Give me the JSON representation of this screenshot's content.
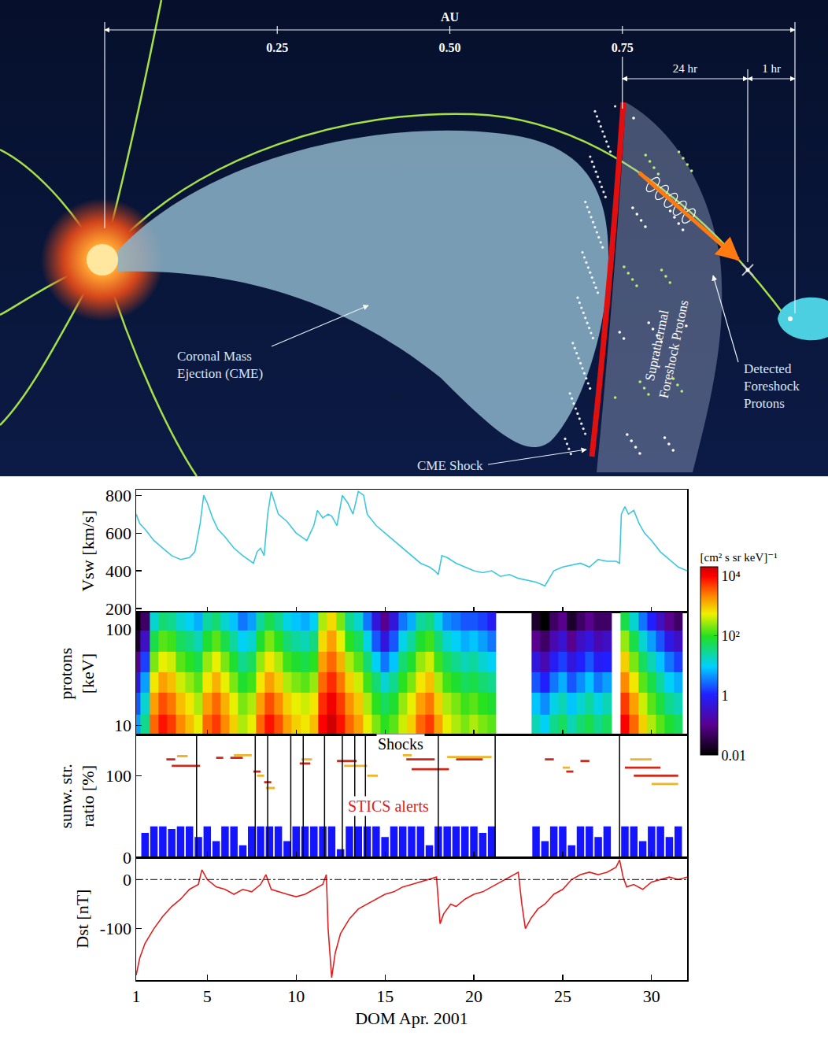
{
  "diagram": {
    "scale": {
      "label": "AU",
      "ticks": [
        {
          "value": 0.25,
          "label": "0.25"
        },
        {
          "value": 0.5,
          "label": "0.50"
        },
        {
          "value": 0.75,
          "label": "0.75"
        }
      ]
    },
    "intervals": [
      "24 hr",
      "1 hr"
    ],
    "labels": {
      "cme": "Coronal Mass\nEjection (CME)",
      "shock": "CME Shock",
      "foreshock": "Suprathermal\nForeshock Protons",
      "detected": "Detected\nForeshock\nProtons"
    }
  },
  "chart_data": [
    {
      "type": "line",
      "ylabel": "Vsw [km/s]",
      "color": "#3cc8dc",
      "x": [
        1.0,
        1.2,
        1.5,
        2,
        2.5,
        3,
        3.5,
        4,
        4.3,
        4.6,
        4.8,
        5.0,
        5.3,
        5.6,
        6,
        6.5,
        7,
        7.3,
        7.6,
        7.8,
        8.0,
        8.2,
        8.4,
        8.6,
        8.8,
        9,
        9.5,
        10,
        10.3,
        10.6,
        10.8,
        11,
        11.2,
        11.5,
        11.8,
        12,
        12.3,
        12.6,
        12.9,
        13.2,
        13.5,
        13.8,
        14,
        14.5,
        15,
        15.5,
        16,
        16.5,
        17,
        17.5,
        17.8,
        18,
        18.2,
        18.5,
        19,
        19.5,
        20,
        20.5,
        21,
        21.5,
        22,
        22.5,
        23,
        23.5,
        24,
        24.5,
        25,
        25.5,
        26,
        26.5,
        27,
        27.5,
        28,
        28.2,
        28.3,
        28.5,
        28.7,
        29,
        29.3,
        29.6,
        30,
        30.5,
        31,
        31.5,
        32
      ],
      "values": [
        700,
        650,
        620,
        560,
        520,
        480,
        460,
        470,
        500,
        650,
        800,
        760,
        680,
        620,
        580,
        520,
        480,
        460,
        440,
        500,
        520,
        480,
        700,
        820,
        760,
        700,
        660,
        600,
        580,
        560,
        600,
        640,
        720,
        680,
        700,
        690,
        640,
        800,
        760,
        700,
        820,
        800,
        700,
        640,
        600,
        560,
        520,
        480,
        440,
        420,
        400,
        380,
        480,
        470,
        440,
        420,
        400,
        390,
        400,
        370,
        380,
        360,
        350,
        340,
        320,
        400,
        420,
        430,
        440,
        420,
        460,
        450,
        450,
        440,
        700,
        740,
        700,
        720,
        650,
        600,
        560,
        500,
        460,
        420,
        400
      ],
      "xlim": [
        1,
        32
      ],
      "xticks": [
        1,
        5,
        10,
        15,
        20,
        25,
        30
      ],
      "ylim": [
        180,
        830
      ],
      "yticks": [
        200,
        400,
        600,
        800
      ],
      "tick_labels": "y"
    },
    {
      "type": "heatmap",
      "ylabel": "protons\n[keV]",
      "log": "y",
      "x": [
        1.0,
        1.5,
        2.0,
        2.5,
        3.0,
        3.5,
        4.0,
        4.5,
        5.0,
        5.5,
        6.0,
        6.5,
        7.0,
        7.5,
        8.0,
        8.5,
        9.0,
        9.5,
        10.0,
        10.5,
        11.0,
        11.5,
        12.0,
        12.5,
        13.0,
        13.5,
        14.0,
        14.5,
        15.0,
        15.5,
        16.0,
        16.5,
        17.0,
        17.5,
        18.0,
        18.5,
        19.0,
        19.5,
        20.0,
        20.5,
        21.0,
        21.5,
        22.0,
        22.5,
        23.0,
        23.5,
        24.0,
        24.5,
        25.0,
        25.5,
        26.0,
        26.5,
        27.0,
        27.5,
        28.0,
        28.5,
        29.0,
        29.5,
        30.0,
        30.5,
        31.0,
        31.5
      ],
      "y": [
        10,
        17,
        28,
        45,
        75,
        125
      ],
      "z": [
        [
          5,
          30,
          3000,
          8000,
          5000,
          2000,
          1000,
          500,
          3000,
          5000,
          2000,
          800,
          300,
          500,
          3000,
          8000,
          4000,
          1500,
          800,
          600,
          1000,
          10000,
          20000,
          8000,
          3000,
          1500,
          500,
          200,
          100,
          150,
          400,
          800,
          3000,
          5000,
          1500,
          500,
          300,
          200,
          300,
          200,
          150,
          null,
          null,
          null,
          null,
          20,
          10,
          30,
          50,
          20,
          40,
          60,
          30,
          50,
          null,
          10000,
          3000,
          800,
          300,
          150,
          80,
          50
        ],
        [
          2,
          15,
          1500,
          4000,
          2500,
          1000,
          600,
          300,
          1500,
          3000,
          1200,
          500,
          200,
          300,
          1500,
          4000,
          2000,
          800,
          500,
          400,
          600,
          6000,
          12000,
          5000,
          1800,
          900,
          300,
          100,
          50,
          80,
          250,
          500,
          1500,
          2500,
          800,
          300,
          200,
          120,
          150,
          100,
          80,
          null,
          null,
          null,
          null,
          8,
          4,
          12,
          20,
          8,
          15,
          25,
          12,
          20,
          null,
          5000,
          1500,
          400,
          150,
          70,
          30,
          20
        ],
        [
          0.5,
          5,
          600,
          1500,
          1000,
          400,
          250,
          150,
          600,
          1200,
          500,
          200,
          80,
          120,
          600,
          1500,
          800,
          300,
          200,
          150,
          250,
          3000,
          6000,
          2500,
          800,
          400,
          120,
          40,
          15,
          30,
          100,
          200,
          600,
          1000,
          300,
          120,
          80,
          50,
          60,
          40,
          30,
          null,
          null,
          null,
          null,
          2,
          1,
          3,
          6,
          2,
          4,
          8,
          3,
          5,
          null,
          2000,
          600,
          150,
          60,
          25,
          10,
          6
        ],
        [
          0.1,
          1.5,
          200,
          500,
          400,
          150,
          100,
          60,
          250,
          500,
          200,
          80,
          30,
          50,
          250,
          600,
          300,
          120,
          80,
          60,
          100,
          1500,
          3000,
          1200,
          300,
          150,
          40,
          10,
          3,
          8,
          40,
          80,
          250,
          400,
          120,
          50,
          30,
          20,
          25,
          15,
          10,
          null,
          null,
          null,
          null,
          0.5,
          0.2,
          0.8,
          1.5,
          0.5,
          1,
          2,
          0.8,
          1,
          null,
          800,
          200,
          50,
          20,
          8,
          3,
          1.5
        ],
        [
          0.02,
          0.3,
          60,
          150,
          120,
          50,
          35,
          20,
          80,
          150,
          60,
          25,
          10,
          15,
          80,
          200,
          100,
          40,
          25,
          20,
          35,
          700,
          1500,
          500,
          100,
          50,
          12,
          2,
          0.5,
          2,
          12,
          25,
          80,
          120,
          40,
          15,
          10,
          6,
          8,
          5,
          3,
          null,
          null,
          null,
          null,
          0.1,
          0.05,
          0.2,
          0.4,
          0.1,
          0.3,
          0.5,
          0.2,
          0.3,
          null,
          250,
          60,
          15,
          5,
          2,
          0.6,
          0.3
        ],
        [
          0.01,
          0.05,
          15,
          40,
          30,
          15,
          10,
          6,
          25,
          40,
          15,
          8,
          3,
          5,
          25,
          60,
          30,
          12,
          8,
          6,
          10,
          300,
          700,
          200,
          30,
          15,
          3,
          0.5,
          0.1,
          0.5,
          3,
          6,
          25,
          35,
          12,
          4,
          3,
          2,
          2,
          1.5,
          0.8,
          null,
          null,
          null,
          null,
          0.02,
          0.01,
          0.05,
          0.1,
          0.02,
          0.05,
          0.1,
          0.05,
          0.05,
          null,
          60,
          15,
          3,
          1,
          0.3,
          0.1,
          0.05
        ]
      ],
      "colorbar": {
        "title": "[cm² s sr keV]⁻¹",
        "range": [
          0.01,
          20000
        ],
        "ticks": [
          {
            "value": 10000,
            "label": "10⁴"
          },
          {
            "value": 100,
            "label": "10²"
          },
          1,
          0.01
        ]
      },
      "xlim": [
        1,
        32
      ],
      "xticks": [
        1,
        5,
        10,
        15,
        20,
        25,
        30
      ],
      "ylim": [
        8,
        150
      ],
      "yticks": [
        10,
        100
      ],
      "tick_labels": "y"
    },
    {
      "type": "bar",
      "ylabel": "sunw. str.\nratio [%]",
      "series": [
        {
          "type": "bar",
          "color": "#1414ff",
          "x": [
            1.0,
            1.5,
            2.0,
            2.5,
            3.0,
            3.5,
            4.0,
            4.5,
            5.0,
            5.5,
            6.0,
            6.5,
            7.0,
            7.5,
            8.0,
            8.5,
            9.0,
            9.5,
            10.0,
            10.5,
            11.0,
            11.5,
            12.0,
            12.5,
            13.0,
            13.5,
            14.0,
            14.5,
            15.0,
            15.5,
            16.0,
            16.5,
            17.0,
            17.5,
            18.0,
            18.5,
            19.0,
            19.5,
            20.0,
            20.5,
            21.0,
            21.5,
            22.0,
            22.5,
            23.0,
            23.5,
            24.0,
            24.5,
            25.0,
            25.5,
            26.0,
            26.5,
            27.0,
            27.5,
            28.0,
            28.5,
            29.0,
            29.5,
            30.0,
            30.5,
            31.0,
            31.5
          ],
          "values": [
            null,
            30,
            38,
            38,
            35,
            38,
            38,
            25,
            38,
            20,
            38,
            38,
            15,
            38,
            38,
            38,
            38,
            20,
            38,
            38,
            38,
            38,
            38,
            10,
            38,
            38,
            38,
            38,
            25,
            38,
            38,
            38,
            38,
            15,
            38,
            38,
            38,
            38,
            38,
            30,
            38,
            null,
            null,
            null,
            null,
            38,
            20,
            38,
            38,
            15,
            38,
            38,
            25,
            38,
            null,
            38,
            38,
            20,
            38,
            38,
            25,
            38
          ]
        },
        {
          "type": "line",
          "color": "#d02818",
          "x": [
            2.7,
            3.2,
            null,
            3.0,
            4.6,
            null,
            5.5,
            5.9,
            null,
            6.3,
            7.0,
            null,
            7.6,
            8.0,
            null,
            8.2,
            8.6,
            null,
            10.2,
            10.8,
            null,
            12.3,
            13.4,
            null,
            16.2,
            17.8,
            null,
            16.5,
            18.6,
            null,
            19.0,
            20.5,
            null,
            24.0,
            24.5,
            null,
            25.2,
            25.6,
            null,
            26.0,
            26.5,
            null,
            28.5,
            30.5,
            null,
            29.0,
            31.5
          ],
          "values": [
            120,
            120,
            null,
            112,
            112,
            null,
            122,
            122,
            null,
            122,
            122,
            null,
            105,
            105,
            null,
            92,
            92,
            null,
            115,
            115,
            null,
            118,
            118,
            null,
            120,
            120,
            null,
            108,
            108,
            null,
            120,
            120,
            null,
            120,
            120,
            null,
            105,
            105,
            null,
            118,
            118,
            null,
            110,
            110,
            null,
            100,
            100
          ]
        },
        {
          "type": "line",
          "color": "#f0b428",
          "x": [
            3.3,
            3.9,
            null,
            6.5,
            7.5,
            null,
            7.8,
            8.2,
            null,
            8.3,
            8.8,
            null,
            10.3,
            10.9,
            null,
            12.7,
            14.0,
            null,
            14.0,
            14.6,
            null,
            16.0,
            16.5,
            null,
            18.5,
            21.0,
            null,
            25.0,
            25.4,
            null,
            28.8,
            30.0,
            null,
            30.0,
            31.5
          ],
          "values": [
            124,
            124,
            null,
            125,
            125,
            null,
            100,
            100,
            null,
            85,
            85,
            null,
            120,
            120,
            null,
            112,
            112,
            null,
            100,
            100,
            null,
            125,
            125,
            null,
            123,
            123,
            null,
            110,
            110,
            null,
            120,
            120,
            null,
            90,
            90
          ]
        }
      ],
      "shocks": [
        4.4,
        7.7,
        8.4,
        9.7,
        10.4,
        11.6,
        12.6,
        13.3,
        13.9,
        18.0,
        21.2,
        28.2
      ],
      "annotations": [
        {
          "text": "Shocks",
          "x": 15.9,
          "y": 139,
          "color": "#000000"
        },
        {
          "text": "STICS alerts",
          "x": 15.2,
          "y": 63,
          "color": "#e02020"
        }
      ],
      "xlim": [
        1,
        32
      ],
      "xticks": [
        1,
        5,
        10,
        15,
        20,
        25,
        30
      ],
      "ylim": [
        0,
        150
      ],
      "yticks": [
        0,
        100
      ],
      "tick_labels": "y"
    },
    {
      "type": "line",
      "ylabel": "Dst [nT]",
      "xlabel": "DOM Apr. 2001",
      "color": "#e02020",
      "x": [
        1.0,
        1.2,
        1.5,
        2,
        2.5,
        3,
        3.5,
        4,
        4.5,
        4.7,
        5,
        5.5,
        6,
        6.5,
        7,
        7.5,
        8,
        8.3,
        8.6,
        9,
        9.5,
        10,
        10.5,
        11,
        11.5,
        11.7,
        11.8,
        12.0,
        12.2,
        12.5,
        13,
        13.5,
        14,
        14.5,
        15,
        15.5,
        16,
        16.5,
        17,
        17.5,
        17.9,
        18.1,
        18.3,
        18.7,
        19,
        19.5,
        20,
        20.5,
        21,
        21.5,
        22,
        22.5,
        22.7,
        22.9,
        23.2,
        23.6,
        24,
        24.5,
        25,
        25.5,
        26,
        26.5,
        27,
        27.5,
        28,
        28.2,
        28.4,
        28.6,
        29,
        29.5,
        30,
        30.5,
        31,
        31.5,
        32
      ],
      "values": [
        -195,
        -160,
        -130,
        -100,
        -75,
        -55,
        -40,
        -20,
        -10,
        20,
        0,
        -15,
        -20,
        -30,
        -20,
        -25,
        -10,
        10,
        -20,
        -25,
        -30,
        -35,
        -30,
        -20,
        -10,
        10,
        -100,
        -200,
        -150,
        -110,
        -80,
        -60,
        -50,
        -40,
        -30,
        -25,
        -15,
        -10,
        -5,
        0,
        5,
        -90,
        -70,
        -50,
        -55,
        -40,
        -30,
        -25,
        -15,
        -5,
        5,
        15,
        -50,
        -100,
        -80,
        -60,
        -50,
        -30,
        -20,
        0,
        10,
        15,
        10,
        15,
        25,
        40,
        5,
        -15,
        -10,
        -20,
        -5,
        0,
        5,
        0,
        5
      ],
      "zero_line": {
        "value": 0,
        "line_style": "dashdot"
      },
      "xlim": [
        1,
        32
      ],
      "xticks": [
        1,
        5,
        10,
        15,
        20,
        25,
        30
      ],
      "ylim": [
        -205,
        45
      ],
      "yticks": [
        -100,
        0
      ]
    }
  ]
}
